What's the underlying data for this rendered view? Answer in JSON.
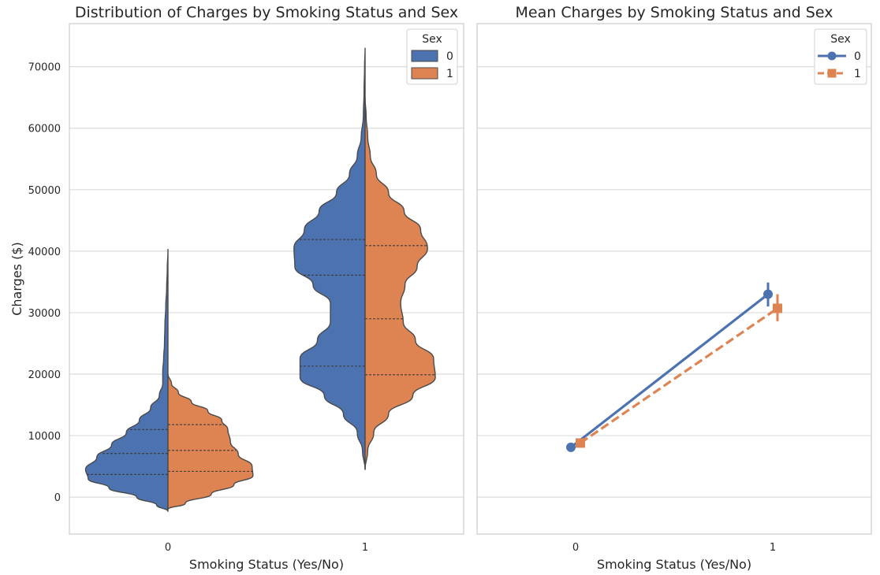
{
  "colors": {
    "sex_0": "#4c72b0",
    "sex_1": "#dd8452",
    "grid": "#dcdcdc",
    "frame": "#cfcfcf",
    "violin_edge": "#4a4a4a"
  },
  "chart_data": [
    {
      "type": "violin",
      "title": "Distribution of Charges by Smoking Status and Sex",
      "xlabel": "Smoking Status (Yes/No)",
      "ylabel": "Charges ($)",
      "categories": [
        "0",
        "1"
      ],
      "ylim": [
        -6000,
        77000
      ],
      "yticks": [
        0,
        10000,
        20000,
        30000,
        40000,
        50000,
        60000,
        70000
      ],
      "grid": "horizontal",
      "legend": {
        "title": "Sex",
        "position": "top-right",
        "entries": [
          "0",
          "1"
        ]
      },
      "split": true,
      "series": [
        {
          "name": "0",
          "color": "sex_0",
          "violins": [
            {
              "category": "0",
              "quartiles": [
                3700,
                7100,
                11000
              ],
              "profile": [
                [
                  -2300,
                  0
                ],
                [
                  -1300,
                  0.13
                ],
                [
                  0,
                  0.36
                ],
                [
                  1500,
                  0.68
                ],
                [
                  3000,
                  0.92
                ],
                [
                  4500,
                  0.95
                ],
                [
                  6500,
                  0.82
                ],
                [
                  8500,
                  0.65
                ],
                [
                  10500,
                  0.48
                ],
                [
                  12500,
                  0.33
                ],
                [
                  14500,
                  0.2
                ],
                [
                  16500,
                  0.1
                ],
                [
                  18500,
                  0.06
                ],
                [
                  20500,
                  0.06
                ],
                [
                  22500,
                  0.05
                ],
                [
                  25000,
                  0.04
                ],
                [
                  28000,
                  0.035
                ],
                [
                  31000,
                  0.025
                ],
                [
                  34000,
                  0.015
                ],
                [
                  37000,
                  0.008
                ],
                [
                  40300,
                  0
                ]
              ]
            },
            {
              "category": "1",
              "quartiles": [
                21300,
                36100,
                41900
              ],
              "profile": [
                [
                  4500,
                  0
                ],
                [
                  7500,
                  0.03
                ],
                [
                  10500,
                  0.09
                ],
                [
                  13500,
                  0.25
                ],
                [
                  16500,
                  0.47
                ],
                [
                  19500,
                  0.75
                ],
                [
                  22500,
                  0.75
                ],
                [
                  25500,
                  0.55
                ],
                [
                  28500,
                  0.4
                ],
                [
                  31500,
                  0.4
                ],
                [
                  34500,
                  0.6
                ],
                [
                  37500,
                  0.81
                ],
                [
                  40500,
                  0.82
                ],
                [
                  43500,
                  0.7
                ],
                [
                  46500,
                  0.53
                ],
                [
                  49500,
                  0.33
                ],
                [
                  52500,
                  0.18
                ],
                [
                  55500,
                  0.09
                ],
                [
                  58500,
                  0.045
                ],
                [
                  62000,
                  0.02
                ],
                [
                  66000,
                  0.012
                ],
                [
                  70000,
                  0.006
                ],
                [
                  73000,
                  0
                ]
              ]
            }
          ]
        },
        {
          "name": "1",
          "color": "sex_1",
          "violins": [
            {
              "category": "0",
              "quartiles": [
                4200,
                7600,
                11800
              ],
              "profile": [
                [
                  -2000,
                  0
                ],
                [
                  -1000,
                  0.2
                ],
                [
                  500,
                  0.5
                ],
                [
                  2000,
                  0.76
                ],
                [
                  3500,
                  0.98
                ],
                [
                  5000,
                  0.97
                ],
                [
                  7000,
                  0.81
                ],
                [
                  9000,
                  0.72
                ],
                [
                  11000,
                  0.69
                ],
                [
                  12500,
                  0.62
                ],
                [
                  14000,
                  0.46
                ],
                [
                  15500,
                  0.27
                ],
                [
                  17000,
                  0.12
                ],
                [
                  18500,
                  0.04
                ],
                [
                  20000,
                  0
                ]
              ]
            },
            {
              "category": "1",
              "quartiles": [
                19900,
                29000,
                40900
              ],
              "profile": [
                [
                  4500,
                  0
                ],
                [
                  7500,
                  0.03
                ],
                [
                  10500,
                  0.1
                ],
                [
                  13500,
                  0.27
                ],
                [
                  16500,
                  0.55
                ],
                [
                  19500,
                  0.81
                ],
                [
                  22500,
                  0.79
                ],
                [
                  25500,
                  0.58
                ],
                [
                  28500,
                  0.44
                ],
                [
                  31500,
                  0.41
                ],
                [
                  34500,
                  0.46
                ],
                [
                  37500,
                  0.6
                ],
                [
                  40500,
                  0.72
                ],
                [
                  43500,
                  0.64
                ],
                [
                  46500,
                  0.45
                ],
                [
                  49500,
                  0.27
                ],
                [
                  52500,
                  0.13
                ],
                [
                  55500,
                  0.06
                ],
                [
                  58500,
                  0.03
                ],
                [
                  62000,
                  0.012
                ],
                [
                  65000,
                  0
                ]
              ]
            }
          ]
        }
      ]
    },
    {
      "type": "line",
      "title": "Mean Charges by Smoking Status and Sex",
      "xlabel": "Smoking Status (Yes/No)",
      "categories": [
        "0",
        "1"
      ],
      "ylim": [
        -6000,
        77000
      ],
      "yticks": [
        0,
        10000,
        20000,
        30000,
        40000,
        50000,
        60000,
        70000
      ],
      "grid": "horizontal",
      "legend": {
        "title": "Sex",
        "position": "top-right",
        "entries": [
          "0",
          "1"
        ]
      },
      "series": [
        {
          "name": "0",
          "color": "sex_0",
          "marker": "circle",
          "linestyle": "solid",
          "values": [
            8100,
            33000
          ],
          "ci": [
            [
              7600,
              8700
            ],
            [
              31000,
              34900
            ]
          ]
        },
        {
          "name": "1",
          "color": "sex_1",
          "marker": "square",
          "linestyle": "dashed",
          "values": [
            8800,
            30700
          ],
          "ci": [
            [
              8300,
              9300
            ],
            [
              28600,
              33000
            ]
          ]
        }
      ]
    }
  ]
}
